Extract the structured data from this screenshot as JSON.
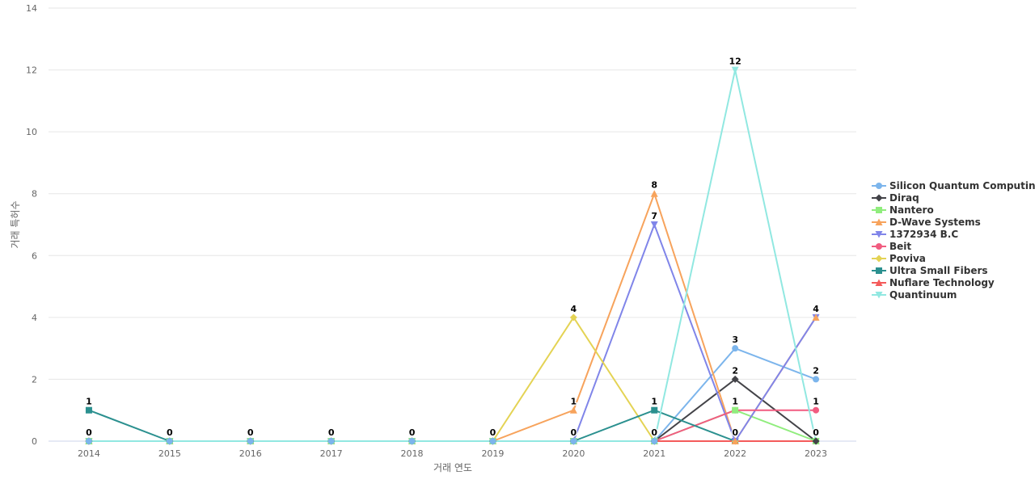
{
  "chart_data": {
    "type": "line",
    "title": "",
    "xlabel": "거래 연도",
    "ylabel": "거래 특허수",
    "x": [
      "2014",
      "2015",
      "2016",
      "2017",
      "2018",
      "2019",
      "2020",
      "2021",
      "2022",
      "2023"
    ],
    "ylim": [
      0,
      14
    ],
    "yticks": [
      0,
      2,
      4,
      6,
      8,
      10,
      12,
      14
    ],
    "grid": true,
    "legend_position": "right",
    "series": [
      {
        "name": "Silicon Quantum Computing",
        "color": "#7cb5ec",
        "marker": "circle",
        "values": [
          0,
          0,
          0,
          0,
          0,
          0,
          0,
          0,
          3,
          2
        ]
      },
      {
        "name": "Diraq",
        "color": "#434348",
        "marker": "diamond",
        "values": [
          0,
          0,
          0,
          0,
          0,
          0,
          0,
          0,
          2,
          0
        ]
      },
      {
        "name": "Nantero",
        "color": "#90ed7d",
        "marker": "square",
        "values": [
          0,
          0,
          0,
          0,
          0,
          0,
          0,
          0,
          1,
          0
        ]
      },
      {
        "name": "D-Wave Systems",
        "color": "#f7a35c",
        "marker": "triangle",
        "values": [
          0,
          0,
          0,
          0,
          0,
          0,
          1,
          8,
          0,
          4
        ]
      },
      {
        "name": "1372934 B.C",
        "color": "#8085e9",
        "marker": "triangle-down",
        "values": [
          0,
          0,
          0,
          0,
          0,
          0,
          0,
          7,
          0,
          4
        ]
      },
      {
        "name": "Beit",
        "color": "#f15c80",
        "marker": "circle",
        "values": [
          0,
          0,
          0,
          0,
          0,
          0,
          0,
          0,
          1,
          1
        ]
      },
      {
        "name": "Poviva",
        "color": "#e4d354",
        "marker": "diamond",
        "values": [
          0,
          0,
          0,
          0,
          0,
          0,
          4,
          0,
          0,
          0
        ]
      },
      {
        "name": "Ultra Small Fibers",
        "color": "#2b908f",
        "marker": "square",
        "values": [
          1,
          0,
          0,
          0,
          0,
          0,
          0,
          1,
          0,
          0
        ]
      },
      {
        "name": "Nuflare Technology",
        "color": "#f45b5b",
        "marker": "triangle",
        "values": [
          0,
          0,
          0,
          0,
          0,
          0,
          0,
          0,
          0,
          0
        ]
      },
      {
        "name": "Quantinuum",
        "color": "#91e8e1",
        "marker": "triangle-down",
        "values": [
          0,
          0,
          0,
          0,
          0,
          0,
          0,
          0,
          12,
          0
        ]
      }
    ],
    "data_labels": [
      {
        "x": "2014",
        "y": 1,
        "text": "1"
      },
      {
        "x": "2014",
        "y": 0,
        "text": "0"
      },
      {
        "x": "2015",
        "y": 0,
        "text": "0"
      },
      {
        "x": "2016",
        "y": 0,
        "text": "0"
      },
      {
        "x": "2017",
        "y": 0,
        "text": "0"
      },
      {
        "x": "2018",
        "y": 0,
        "text": "0"
      },
      {
        "x": "2019",
        "y": 0,
        "text": "0"
      },
      {
        "x": "2020",
        "y": 4,
        "text": "4"
      },
      {
        "x": "2020",
        "y": 1,
        "text": "1"
      },
      {
        "x": "2020",
        "y": 0,
        "text": "0"
      },
      {
        "x": "2021",
        "y": 8,
        "text": "8"
      },
      {
        "x": "2021",
        "y": 7,
        "text": "7"
      },
      {
        "x": "2021",
        "y": 1,
        "text": "1"
      },
      {
        "x": "2021",
        "y": 0,
        "text": "0"
      },
      {
        "x": "2022",
        "y": 12,
        "text": "12"
      },
      {
        "x": "2022",
        "y": 3,
        "text": "3"
      },
      {
        "x": "2022",
        "y": 2,
        "text": "2"
      },
      {
        "x": "2022",
        "y": 1,
        "text": "1"
      },
      {
        "x": "2022",
        "y": 0,
        "text": "0"
      },
      {
        "x": "2023",
        "y": 4,
        "text": "4"
      },
      {
        "x": "2023",
        "y": 2,
        "text": "2"
      },
      {
        "x": "2023",
        "y": 1,
        "text": "1"
      },
      {
        "x": "2023",
        "y": 0,
        "text": "0"
      }
    ]
  }
}
